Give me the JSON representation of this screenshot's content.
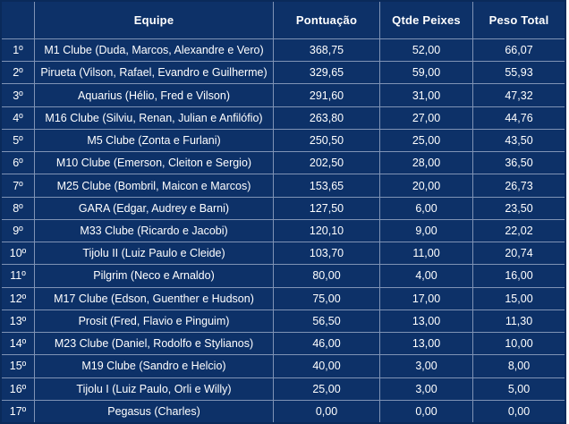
{
  "table": {
    "headers": {
      "rank": "",
      "team": "Equipe",
      "score": "Pontuação",
      "fish": "Qtde Peixes",
      "weight": "Peso Total"
    },
    "rows": [
      {
        "rank": "1º",
        "team": "M1 Clube (Duda, Marcos, Alexandre e Vero)",
        "score": "368,75",
        "fish": "52,00",
        "weight": "66,07"
      },
      {
        "rank": "2º",
        "team": "Pirueta (Vilson, Rafael, Evandro e Guilherme)",
        "score": "329,65",
        "fish": "59,00",
        "weight": "55,93"
      },
      {
        "rank": "3º",
        "team": "Aquarius (Hélio, Fred e Vilson)",
        "score": "291,60",
        "fish": "31,00",
        "weight": "47,32"
      },
      {
        "rank": "4º",
        "team": "M16 Clube (Silviu, Renan, Julian e Anfilófio)",
        "score": "263,80",
        "fish": "27,00",
        "weight": "44,76"
      },
      {
        "rank": "5º",
        "team": "M5 Clube (Zonta e Furlani)",
        "score": "250,50",
        "fish": "25,00",
        "weight": "43,50"
      },
      {
        "rank": "6º",
        "team": "M10 Clube (Emerson, Cleiton e Sergio)",
        "score": "202,50",
        "fish": "28,00",
        "weight": "36,50"
      },
      {
        "rank": "7º",
        "team": "M25 Clube (Bombril, Maicon e Marcos)",
        "score": "153,65",
        "fish": "20,00",
        "weight": "26,73"
      },
      {
        "rank": "8º",
        "team": "GARA (Edgar, Audrey e Barni)",
        "score": "127,50",
        "fish": "6,00",
        "weight": "23,50"
      },
      {
        "rank": "9º",
        "team": "M33 Clube (Ricardo e Jacobi)",
        "score": "120,10",
        "fish": "9,00",
        "weight": "22,02"
      },
      {
        "rank": "10º",
        "team": "Tijolu II (Luiz Paulo e Cleide)",
        "score": "103,70",
        "fish": "11,00",
        "weight": "20,74"
      },
      {
        "rank": "11º",
        "team": "Pilgrim (Neco e Arnaldo)",
        "score": "80,00",
        "fish": "4,00",
        "weight": "16,00"
      },
      {
        "rank": "12º",
        "team": "M17 Clube (Edson, Guenther e Hudson)",
        "score": "75,00",
        "fish": "17,00",
        "weight": "15,00"
      },
      {
        "rank": "13º",
        "team": "Prosit (Fred, Flavio e Pinguim)",
        "score": "56,50",
        "fish": "13,00",
        "weight": "11,30"
      },
      {
        "rank": "14º",
        "team": "M23 Clube (Daniel, Rodolfo e Stylianos)",
        "score": "46,00",
        "fish": "13,00",
        "weight": "10,00"
      },
      {
        "rank": "15º",
        "team": "M19 Clube (Sandro e Helcio)",
        "score": "40,00",
        "fish": "3,00",
        "weight": "8,00"
      },
      {
        "rank": "16º",
        "team": "Tijolu I (Luiz Paulo, Orli e Willy)",
        "score": "25,00",
        "fish": "3,00",
        "weight": "5,00"
      },
      {
        "rank": "17º",
        "team": "Pegasus (Charles)",
        "score": "0,00",
        "fish": "0,00",
        "weight": "0,00"
      }
    ]
  },
  "colors": {
    "background": "#0d3168",
    "grid_line": "#7f93b5",
    "text": "#ffffff"
  }
}
